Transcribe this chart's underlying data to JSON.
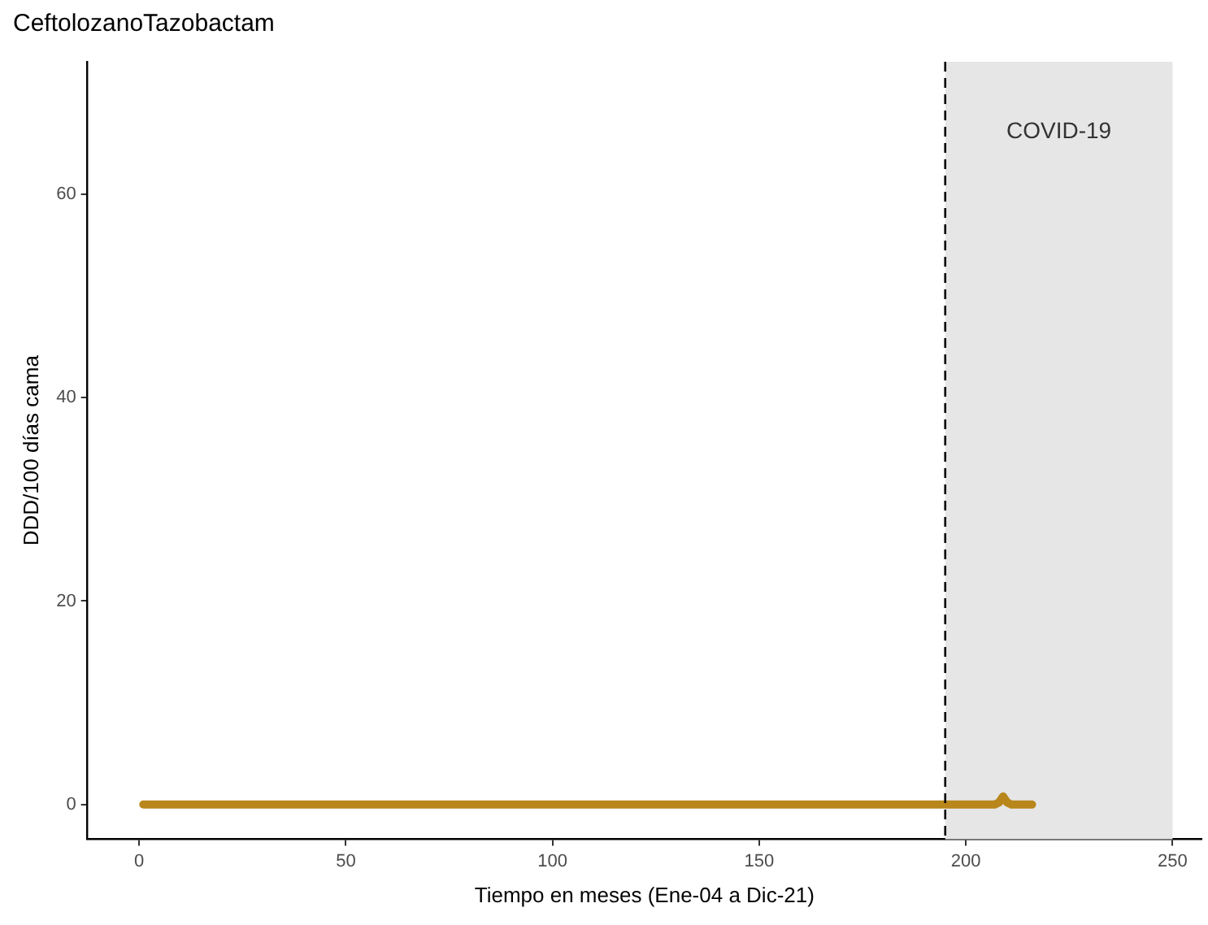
{
  "chart_data": {
    "type": "line",
    "title": "CeftolozanoTazobactam",
    "xlabel": "Tiempo en meses (Ene-04 a Dic-21)",
    "ylabel": "DDD/100 días cama",
    "x": [
      1,
      207,
      208,
      209,
      210,
      211,
      216
    ],
    "series": [
      {
        "color": "#b8861a",
        "values": [
          0,
          0,
          0.2,
          0.8,
          0.2,
          0,
          0
        ]
      }
    ],
    "xlim": [
      -12.5,
      257
    ],
    "xticks": [
      0,
      50,
      100,
      150,
      200,
      250
    ],
    "ylim": [
      -3.4,
      73
    ],
    "yticks": [
      0,
      20,
      40,
      60
    ],
    "grid": false,
    "legend": false,
    "marker": "none",
    "line_style": "solid",
    "ref_lines": [
      {
        "axis": "x",
        "value": 195,
        "line_style": "dashed",
        "color": "#000000"
      }
    ],
    "bands": [
      {
        "axis": "x",
        "from": 195,
        "to": 250,
        "color": "#e6e6e6"
      }
    ],
    "annotations": [
      "COVID-19"
    ]
  }
}
